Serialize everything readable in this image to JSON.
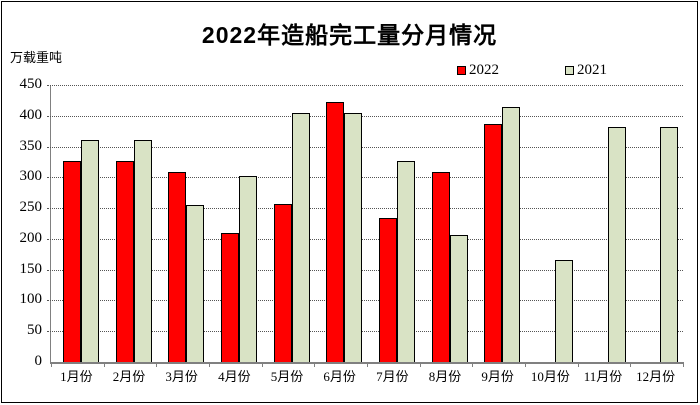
{
  "title": "2022年造船完工量分月情况",
  "unit_label": "万载重吨",
  "legend": {
    "items": [
      {
        "label": "2022",
        "color": "#FF0000"
      },
      {
        "label": "2021",
        "color": "#D9E3C5"
      }
    ]
  },
  "chart_data": {
    "type": "bar",
    "title": "2022年造船完工量分月情况",
    "ylabel": "万载重吨",
    "categories": [
      "1月份",
      "2月份",
      "3月份",
      "4月份",
      "5月份",
      "6月份",
      "7月份",
      "8月份",
      "9月份",
      "10月份",
      "11月份",
      "12月份"
    ],
    "series": [
      {
        "name": "2022",
        "color": "#FF0000",
        "values": [
          326,
          326,
          309,
          210,
          256,
          422,
          234,
          309,
          386,
          null,
          null,
          null
        ]
      },
      {
        "name": "2021",
        "color": "#D9E3C5",
        "values": [
          361,
          361,
          255,
          302,
          404,
          405,
          327,
          207,
          415,
          166,
          381,
          381
        ]
      }
    ],
    "ylim": [
      0,
      450
    ],
    "ytick_interval": 50,
    "grid": "horizontal-dotted",
    "legend_position": "top-right"
  }
}
